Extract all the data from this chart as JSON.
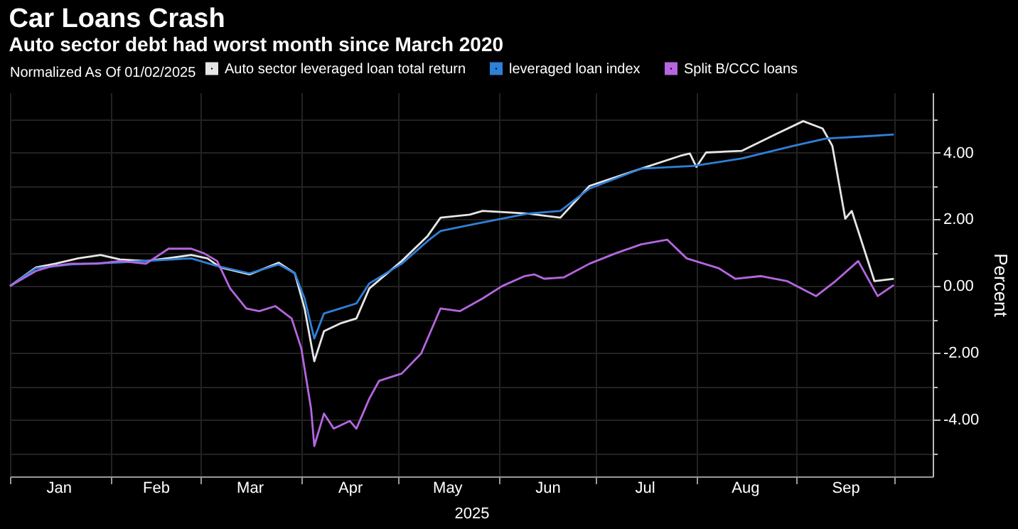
{
  "chart_data": {
    "type": "line",
    "title": "Car Loans Crash",
    "subtitle": "Auto sector debt had worst month since March 2020",
    "legend_title": "Normalized As Of 01/02/2025",
    "legend": "top",
    "xlabel": "2025",
    "ylabel": "Percent",
    "grid": true,
    "line_style": "solid",
    "xlim": [
      "2025-01-01",
      "2025-10-13"
    ],
    "ylim": [
      -5.7,
      5.8
    ],
    "xticks": [
      {
        "value": "2025-01-01",
        "label": null
      },
      {
        "value": "2025-01-16",
        "label": "Jan"
      },
      {
        "value": "2025-02-01",
        "label": null
      },
      {
        "value": "2025-02-15",
        "label": "Feb"
      },
      {
        "value": "2025-03-01",
        "label": null
      },
      {
        "value": "2025-03-16",
        "label": "Mar"
      },
      {
        "value": "2025-04-01",
        "label": null
      },
      {
        "value": "2025-04-16",
        "label": "Apr"
      },
      {
        "value": "2025-05-01",
        "label": null
      },
      {
        "value": "2025-05-16",
        "label": "May"
      },
      {
        "value": "2025-06-01",
        "label": null
      },
      {
        "value": "2025-06-16",
        "label": "Jun"
      },
      {
        "value": "2025-07-01",
        "label": null
      },
      {
        "value": "2025-07-16",
        "label": "Jul"
      },
      {
        "value": "2025-08-01",
        "label": null
      },
      {
        "value": "2025-08-16",
        "label": "Aug"
      },
      {
        "value": "2025-09-01",
        "label": null
      },
      {
        "value": "2025-09-16",
        "label": "Sep"
      },
      {
        "value": "2025-10-01",
        "label": null
      }
    ],
    "yticks": [
      {
        "value": -5,
        "label": null
      },
      {
        "value": -4,
        "label": "-4.00"
      },
      {
        "value": -3,
        "label": null
      },
      {
        "value": -2,
        "label": "-2.00"
      },
      {
        "value": -1,
        "label": null
      },
      {
        "value": 0,
        "label": "0.00"
      },
      {
        "value": 1,
        "label": null
      },
      {
        "value": 2,
        "label": "2.00"
      },
      {
        "value": 3,
        "label": null
      },
      {
        "value": 4,
        "label": "4.00"
      },
      {
        "value": 5,
        "label": null
      }
    ],
    "series": [
      {
        "name": "Auto sector leveraged loan total return",
        "color": "#e6e6e6",
        "x": [
          "2025-01-01",
          "2025-01-09",
          "2025-01-15",
          "2025-01-22",
          "2025-01-29",
          "2025-02-04",
          "2025-02-12",
          "2025-02-20",
          "2025-02-26",
          "2025-03-03",
          "2025-03-07",
          "2025-03-16",
          "2025-03-25",
          "2025-03-30",
          "2025-04-02",
          "2025-04-05",
          "2025-04-08",
          "2025-04-13",
          "2025-04-18",
          "2025-04-22",
          "2025-05-02",
          "2025-05-10",
          "2025-05-14",
          "2025-05-23",
          "2025-05-27",
          "2025-06-10",
          "2025-06-20",
          "2025-06-29",
          "2025-07-15",
          "2025-07-27",
          "2025-07-30",
          "2025-08-01",
          "2025-08-04",
          "2025-08-15",
          "2025-08-26",
          "2025-09-03",
          "2025-09-09",
          "2025-09-12",
          "2025-09-16",
          "2025-09-18",
          "2025-09-25",
          "2025-10-01"
        ],
        "values": [
          0.0,
          0.56,
          0.67,
          0.83,
          0.93,
          0.8,
          0.75,
          0.85,
          0.93,
          0.83,
          0.56,
          0.35,
          0.7,
          0.38,
          -0.67,
          -2.25,
          -1.35,
          -1.12,
          -0.97,
          -0.07,
          0.75,
          1.5,
          2.05,
          2.14,
          2.25,
          2.17,
          2.05,
          3.0,
          3.52,
          3.9,
          3.97,
          3.57,
          4.0,
          4.05,
          4.57,
          4.94,
          4.72,
          4.2,
          2.02,
          2.25,
          0.15,
          0.22
        ]
      },
      {
        "name": "leveraged loan index",
        "color": "#2f80d8",
        "x": [
          "2025-01-01",
          "2025-01-09",
          "2025-01-20",
          "2025-02-04",
          "2025-02-26",
          "2025-03-06",
          "2025-03-16",
          "2025-03-25",
          "2025-03-30",
          "2025-04-02",
          "2025-04-05",
          "2025-04-08",
          "2025-04-13",
          "2025-04-18",
          "2025-04-22",
          "2025-05-02",
          "2025-05-10",
          "2025-05-14",
          "2025-05-25",
          "2025-06-10",
          "2025-06-20",
          "2025-06-29",
          "2025-07-15",
          "2025-07-31",
          "2025-08-15",
          "2025-08-31",
          "2025-09-10",
          "2025-09-23",
          "2025-10-01"
        ],
        "values": [
          0.0,
          0.53,
          0.65,
          0.71,
          0.83,
          0.6,
          0.38,
          0.65,
          0.38,
          -0.37,
          -1.57,
          -0.82,
          -0.67,
          -0.52,
          0.08,
          0.67,
          1.35,
          1.65,
          1.87,
          2.17,
          2.25,
          2.92,
          3.52,
          3.6,
          3.82,
          4.2,
          4.42,
          4.49,
          4.54
        ]
      },
      {
        "name": "Split B/CCC loans",
        "color": "#b566e0",
        "x": [
          "2025-01-01",
          "2025-01-09",
          "2025-01-14",
          "2025-01-20",
          "2025-01-28",
          "2025-02-04",
          "2025-02-12",
          "2025-02-19",
          "2025-02-26",
          "2025-03-02",
          "2025-03-06",
          "2025-03-10",
          "2025-03-15",
          "2025-03-19",
          "2025-03-24",
          "2025-03-29",
          "2025-04-01",
          "2025-04-04",
          "2025-04-05",
          "2025-04-08",
          "2025-04-11",
          "2025-04-16",
          "2025-04-18",
          "2025-04-22",
          "2025-04-25",
          "2025-05-02",
          "2025-05-08",
          "2025-05-14",
          "2025-05-20",
          "2025-05-27",
          "2025-06-02",
          "2025-06-09",
          "2025-06-12",
          "2025-06-15",
          "2025-06-21",
          "2025-06-29",
          "2025-07-07",
          "2025-07-15",
          "2025-07-23",
          "2025-07-29",
          "2025-08-08",
          "2025-08-13",
          "2025-08-21",
          "2025-08-29",
          "2025-09-07",
          "2025-09-13",
          "2025-09-20",
          "2025-09-26",
          "2025-10-01"
        ],
        "values": [
          0.0,
          0.45,
          0.6,
          0.67,
          0.67,
          0.75,
          0.67,
          1.12,
          1.12,
          0.98,
          0.75,
          -0.07,
          -0.67,
          -0.75,
          -0.6,
          -0.97,
          -1.87,
          -3.67,
          -4.79,
          -3.82,
          -4.27,
          -4.04,
          -4.27,
          -3.37,
          -2.84,
          -2.62,
          -2.02,
          -0.67,
          -0.75,
          -0.37,
          0.0,
          0.3,
          0.35,
          0.22,
          0.26,
          0.67,
          0.98,
          1.25,
          1.39,
          0.83,
          0.53,
          0.22,
          0.3,
          0.15,
          -0.3,
          0.15,
          0.75,
          -0.3,
          0.03
        ]
      }
    ]
  }
}
